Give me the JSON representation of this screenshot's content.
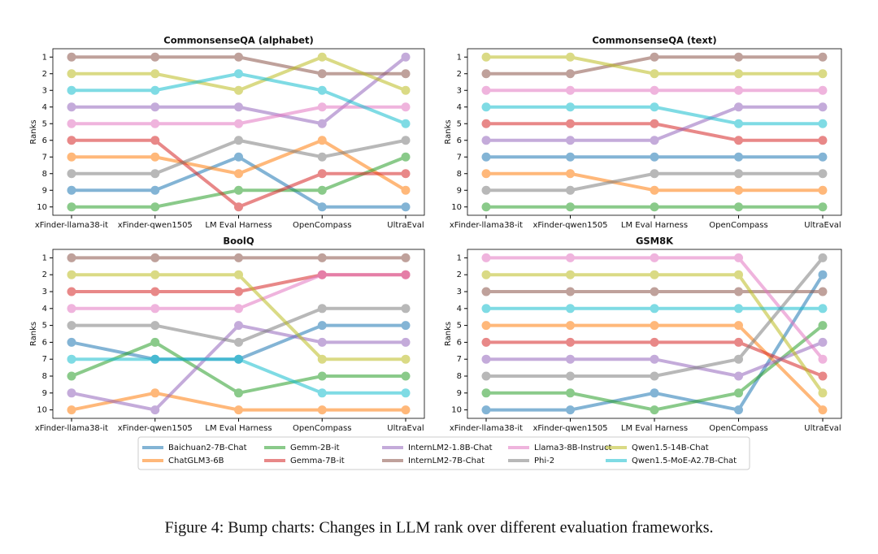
{
  "chart_data": [
    {
      "type": "line",
      "title": "CommonsenseQA (alphabet)",
      "ylabel": "Ranks",
      "categories": [
        "xFinder-llama38-it",
        "xFinder-qwen1505",
        "LM Eval Harness",
        "OpenCompass",
        "UltraEval"
      ],
      "ylim": [
        10.5,
        0.5
      ],
      "yticks": [
        1,
        2,
        3,
        4,
        5,
        6,
        7,
        8,
        9,
        10
      ],
      "series": [
        {
          "name": "Baichuan2-7B-Chat",
          "color": "#1f77b4",
          "values": [
            9,
            9,
            7,
            10,
            10
          ]
        },
        {
          "name": "ChatGLM3-6B",
          "color": "#ff7f0e",
          "values": [
            7,
            7,
            8,
            6,
            9
          ]
        },
        {
          "name": "Gemm-2B-it",
          "color": "#2ca02c",
          "values": [
            10,
            10,
            9,
            9,
            7
          ]
        },
        {
          "name": "Gemma-7B-it",
          "color": "#d62728",
          "values": [
            6,
            6,
            10,
            8,
            8
          ]
        },
        {
          "name": "InternLM2-1.8B-Chat",
          "color": "#9467bd",
          "values": [
            4,
            4,
            4,
            5,
            1
          ]
        },
        {
          "name": "InternLM2-7B-Chat",
          "color": "#8c564b",
          "values": [
            1,
            1,
            1,
            2,
            2
          ]
        },
        {
          "name": "Llama3-8B-Instruct",
          "color": "#e377c2",
          "values": [
            5,
            5,
            5,
            4,
            4
          ]
        },
        {
          "name": "Phi-2",
          "color": "#7f7f7f",
          "values": [
            8,
            8,
            6,
            7,
            6
          ]
        },
        {
          "name": "Qwen1.5-14B-Chat",
          "color": "#bcbd22",
          "values": [
            2,
            2,
            3,
            1,
            3
          ]
        },
        {
          "name": "Qwen1.5-MoE-A2.7B-Chat",
          "color": "#17becf",
          "values": [
            3,
            3,
            2,
            3,
            5
          ]
        }
      ]
    },
    {
      "type": "line",
      "title": "CommonsenseQA (text)",
      "ylabel": "Ranks",
      "categories": [
        "xFinder-llama38-it",
        "xFinder-qwen1505",
        "LM Eval Harness",
        "OpenCompass",
        "UltraEval"
      ],
      "ylim": [
        10.5,
        0.5
      ],
      "yticks": [
        1,
        2,
        3,
        4,
        5,
        6,
        7,
        8,
        9,
        10
      ],
      "series": [
        {
          "name": "Baichuan2-7B-Chat",
          "color": "#1f77b4",
          "values": [
            7,
            7,
            7,
            7,
            7
          ]
        },
        {
          "name": "ChatGLM3-6B",
          "color": "#ff7f0e",
          "values": [
            8,
            8,
            9,
            9,
            9
          ]
        },
        {
          "name": "Gemm-2B-it",
          "color": "#2ca02c",
          "values": [
            10,
            10,
            10,
            10,
            10
          ]
        },
        {
          "name": "Gemma-7B-it",
          "color": "#d62728",
          "values": [
            5,
            5,
            5,
            6,
            6
          ]
        },
        {
          "name": "InternLM2-1.8B-Chat",
          "color": "#9467bd",
          "values": [
            6,
            6,
            6,
            4,
            4
          ]
        },
        {
          "name": "InternLM2-7B-Chat",
          "color": "#8c564b",
          "values": [
            2,
            2,
            1,
            1,
            1
          ]
        },
        {
          "name": "Llama3-8B-Instruct",
          "color": "#e377c2",
          "values": [
            3,
            3,
            3,
            3,
            3
          ]
        },
        {
          "name": "Phi-2",
          "color": "#7f7f7f",
          "values": [
            9,
            9,
            8,
            8,
            8
          ]
        },
        {
          "name": "Qwen1.5-14B-Chat",
          "color": "#bcbd22",
          "values": [
            1,
            1,
            2,
            2,
            2
          ]
        },
        {
          "name": "Qwen1.5-MoE-A2.7B-Chat",
          "color": "#17becf",
          "values": [
            4,
            4,
            4,
            5,
            5
          ]
        }
      ]
    },
    {
      "type": "line",
      "title": "BoolQ",
      "ylabel": "Ranks",
      "categories": [
        "xFinder-llama38-it",
        "xFinder-qwen1505",
        "LM Eval Harness",
        "OpenCompass",
        "UltraEval"
      ],
      "ylim": [
        10.5,
        0.5
      ],
      "yticks": [
        1,
        2,
        3,
        4,
        5,
        6,
        7,
        8,
        9,
        10
      ],
      "series": [
        {
          "name": "Baichuan2-7B-Chat",
          "color": "#1f77b4",
          "values": [
            6,
            7,
            7,
            5,
            5
          ]
        },
        {
          "name": "ChatGLM3-6B",
          "color": "#ff7f0e",
          "values": [
            10,
            9,
            10,
            10,
            10
          ]
        },
        {
          "name": "Gemm-2B-it",
          "color": "#2ca02c",
          "values": [
            8,
            6,
            9,
            8,
            8
          ]
        },
        {
          "name": "Gemma-7B-it",
          "color": "#d62728",
          "values": [
            3,
            3,
            3,
            2,
            2
          ]
        },
        {
          "name": "InternLM2-1.8B-Chat",
          "color": "#9467bd",
          "values": [
            9,
            10,
            5,
            6,
            6
          ]
        },
        {
          "name": "InternLM2-7B-Chat",
          "color": "#8c564b",
          "values": [
            1,
            1,
            1,
            1,
            1
          ]
        },
        {
          "name": "Llama3-8B-Instruct",
          "color": "#e377c2",
          "values": [
            4,
            4,
            4,
            2,
            2
          ]
        },
        {
          "name": "Phi-2",
          "color": "#7f7f7f",
          "values": [
            5,
            5,
            6,
            4,
            4
          ]
        },
        {
          "name": "Qwen1.5-14B-Chat",
          "color": "#bcbd22",
          "values": [
            2,
            2,
            2,
            7,
            7
          ]
        },
        {
          "name": "Qwen1.5-MoE-A2.7B-Chat",
          "color": "#17becf",
          "values": [
            7,
            7,
            7,
            9,
            9
          ]
        }
      ]
    },
    {
      "type": "line",
      "title": "GSM8K",
      "ylabel": "Ranks",
      "categories": [
        "xFinder-llama38-it",
        "xFinder-qwen1505",
        "LM Eval Harness",
        "OpenCompass",
        "UltraEval"
      ],
      "ylim": [
        10.5,
        0.5
      ],
      "yticks": [
        1,
        2,
        3,
        4,
        5,
        6,
        7,
        8,
        9,
        10
      ],
      "series": [
        {
          "name": "Baichuan2-7B-Chat",
          "color": "#1f77b4",
          "values": [
            10,
            10,
            9,
            10,
            2
          ]
        },
        {
          "name": "ChatGLM3-6B",
          "color": "#ff7f0e",
          "values": [
            5,
            5,
            5,
            5,
            10
          ]
        },
        {
          "name": "Gemm-2B-it",
          "color": "#2ca02c",
          "values": [
            9,
            9,
            10,
            9,
            5
          ]
        },
        {
          "name": "Gemma-7B-it",
          "color": "#d62728",
          "values": [
            6,
            6,
            6,
            6,
            8
          ]
        },
        {
          "name": "InternLM2-1.8B-Chat",
          "color": "#9467bd",
          "values": [
            7,
            7,
            7,
            8,
            6
          ]
        },
        {
          "name": "InternLM2-7B-Chat",
          "color": "#8c564b",
          "values": [
            3,
            3,
            3,
            3,
            3
          ]
        },
        {
          "name": "Llama3-8B-Instruct",
          "color": "#e377c2",
          "values": [
            1,
            1,
            1,
            1,
            7
          ]
        },
        {
          "name": "Phi-2",
          "color": "#7f7f7f",
          "values": [
            8,
            8,
            8,
            7,
            1
          ]
        },
        {
          "name": "Qwen1.5-14B-Chat",
          "color": "#bcbd22",
          "values": [
            2,
            2,
            2,
            2,
            9
          ]
        },
        {
          "name": "Qwen1.5-MoE-A2.7B-Chat",
          "color": "#17becf",
          "values": [
            4,
            4,
            4,
            4,
            4
          ]
        }
      ]
    }
  ],
  "caption": "Figure 4: Bump charts: Changes in LLM rank over different evaluation frameworks."
}
